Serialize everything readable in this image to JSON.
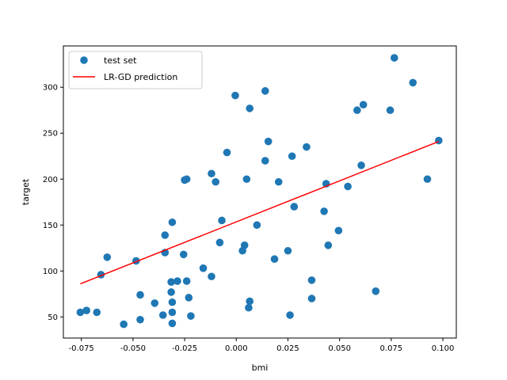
{
  "chart_data": {
    "type": "scatter",
    "xlabel": "bmi",
    "ylabel": "target",
    "xlim": [
      -0.0837,
      0.1065
    ],
    "ylim": [
      27,
      345
    ],
    "xticks": [
      "-0.075",
      "-0.050",
      "-0.025",
      "0.000",
      "0.025",
      "0.050",
      "0.075",
      "0.100"
    ],
    "xtick_values": [
      -0.075,
      -0.05,
      -0.025,
      0.0,
      0.025,
      0.05,
      0.075,
      0.1
    ],
    "yticks": [
      "50",
      "100",
      "150",
      "200",
      "250",
      "300"
    ],
    "ytick_values": [
      50,
      100,
      150,
      200,
      250,
      300
    ],
    "legend_position": "upper-left",
    "grid": false,
    "series": [
      {
        "name": "test set",
        "kind": "scatter",
        "color": "#1f77b4",
        "points": [
          [
            -0.0755,
            55
          ],
          [
            -0.0725,
            57
          ],
          [
            -0.0675,
            55
          ],
          [
            -0.0655,
            96
          ],
          [
            -0.0625,
            115
          ],
          [
            -0.0545,
            42
          ],
          [
            -0.0485,
            111
          ],
          [
            -0.0465,
            74
          ],
          [
            -0.0465,
            47
          ],
          [
            -0.0395,
            65
          ],
          [
            -0.0355,
            52
          ],
          [
            -0.0345,
            139
          ],
          [
            -0.0345,
            120
          ],
          [
            -0.0315,
            88
          ],
          [
            -0.0315,
            77
          ],
          [
            -0.031,
            153
          ],
          [
            -0.031,
            66
          ],
          [
            -0.031,
            55
          ],
          [
            -0.031,
            43
          ],
          [
            -0.0285,
            89
          ],
          [
            -0.0255,
            118
          ],
          [
            -0.025,
            199
          ],
          [
            -0.024,
            200
          ],
          [
            -0.024,
            89
          ],
          [
            -0.023,
            71
          ],
          [
            -0.022,
            51
          ],
          [
            -0.016,
            103
          ],
          [
            -0.012,
            206
          ],
          [
            -0.012,
            94
          ],
          [
            -0.01,
            197
          ],
          [
            -0.008,
            131
          ],
          [
            -0.007,
            155
          ],
          [
            -0.0045,
            229
          ],
          [
            -0.0005,
            291
          ],
          [
            0.003,
            122
          ],
          [
            0.004,
            128
          ],
          [
            0.005,
            200
          ],
          [
            0.006,
            60
          ],
          [
            0.0065,
            277
          ],
          [
            0.0065,
            67
          ],
          [
            0.01,
            150
          ],
          [
            0.014,
            296
          ],
          [
            0.014,
            220
          ],
          [
            0.0155,
            241
          ],
          [
            0.0185,
            113
          ],
          [
            0.0205,
            197
          ],
          [
            0.025,
            122
          ],
          [
            0.026,
            52
          ],
          [
            0.027,
            225
          ],
          [
            0.028,
            170
          ],
          [
            0.034,
            235
          ],
          [
            0.0365,
            90
          ],
          [
            0.0365,
            70
          ],
          [
            0.0425,
            165
          ],
          [
            0.0435,
            195
          ],
          [
            0.0445,
            128
          ],
          [
            0.0495,
            144
          ],
          [
            0.054,
            192
          ],
          [
            0.0585,
            275
          ],
          [
            0.0605,
            215
          ],
          [
            0.0615,
            281
          ],
          [
            0.0675,
            78
          ],
          [
            0.0745,
            275
          ],
          [
            0.0765,
            332
          ],
          [
            0.0855,
            305
          ],
          [
            0.0925,
            200
          ],
          [
            0.098,
            242
          ]
        ]
      },
      {
        "name": "LR-GD prediction",
        "kind": "line",
        "color": "#ff0000",
        "points": [
          [
            -0.0755,
            86
          ],
          [
            0.098,
            241
          ]
        ]
      }
    ]
  }
}
